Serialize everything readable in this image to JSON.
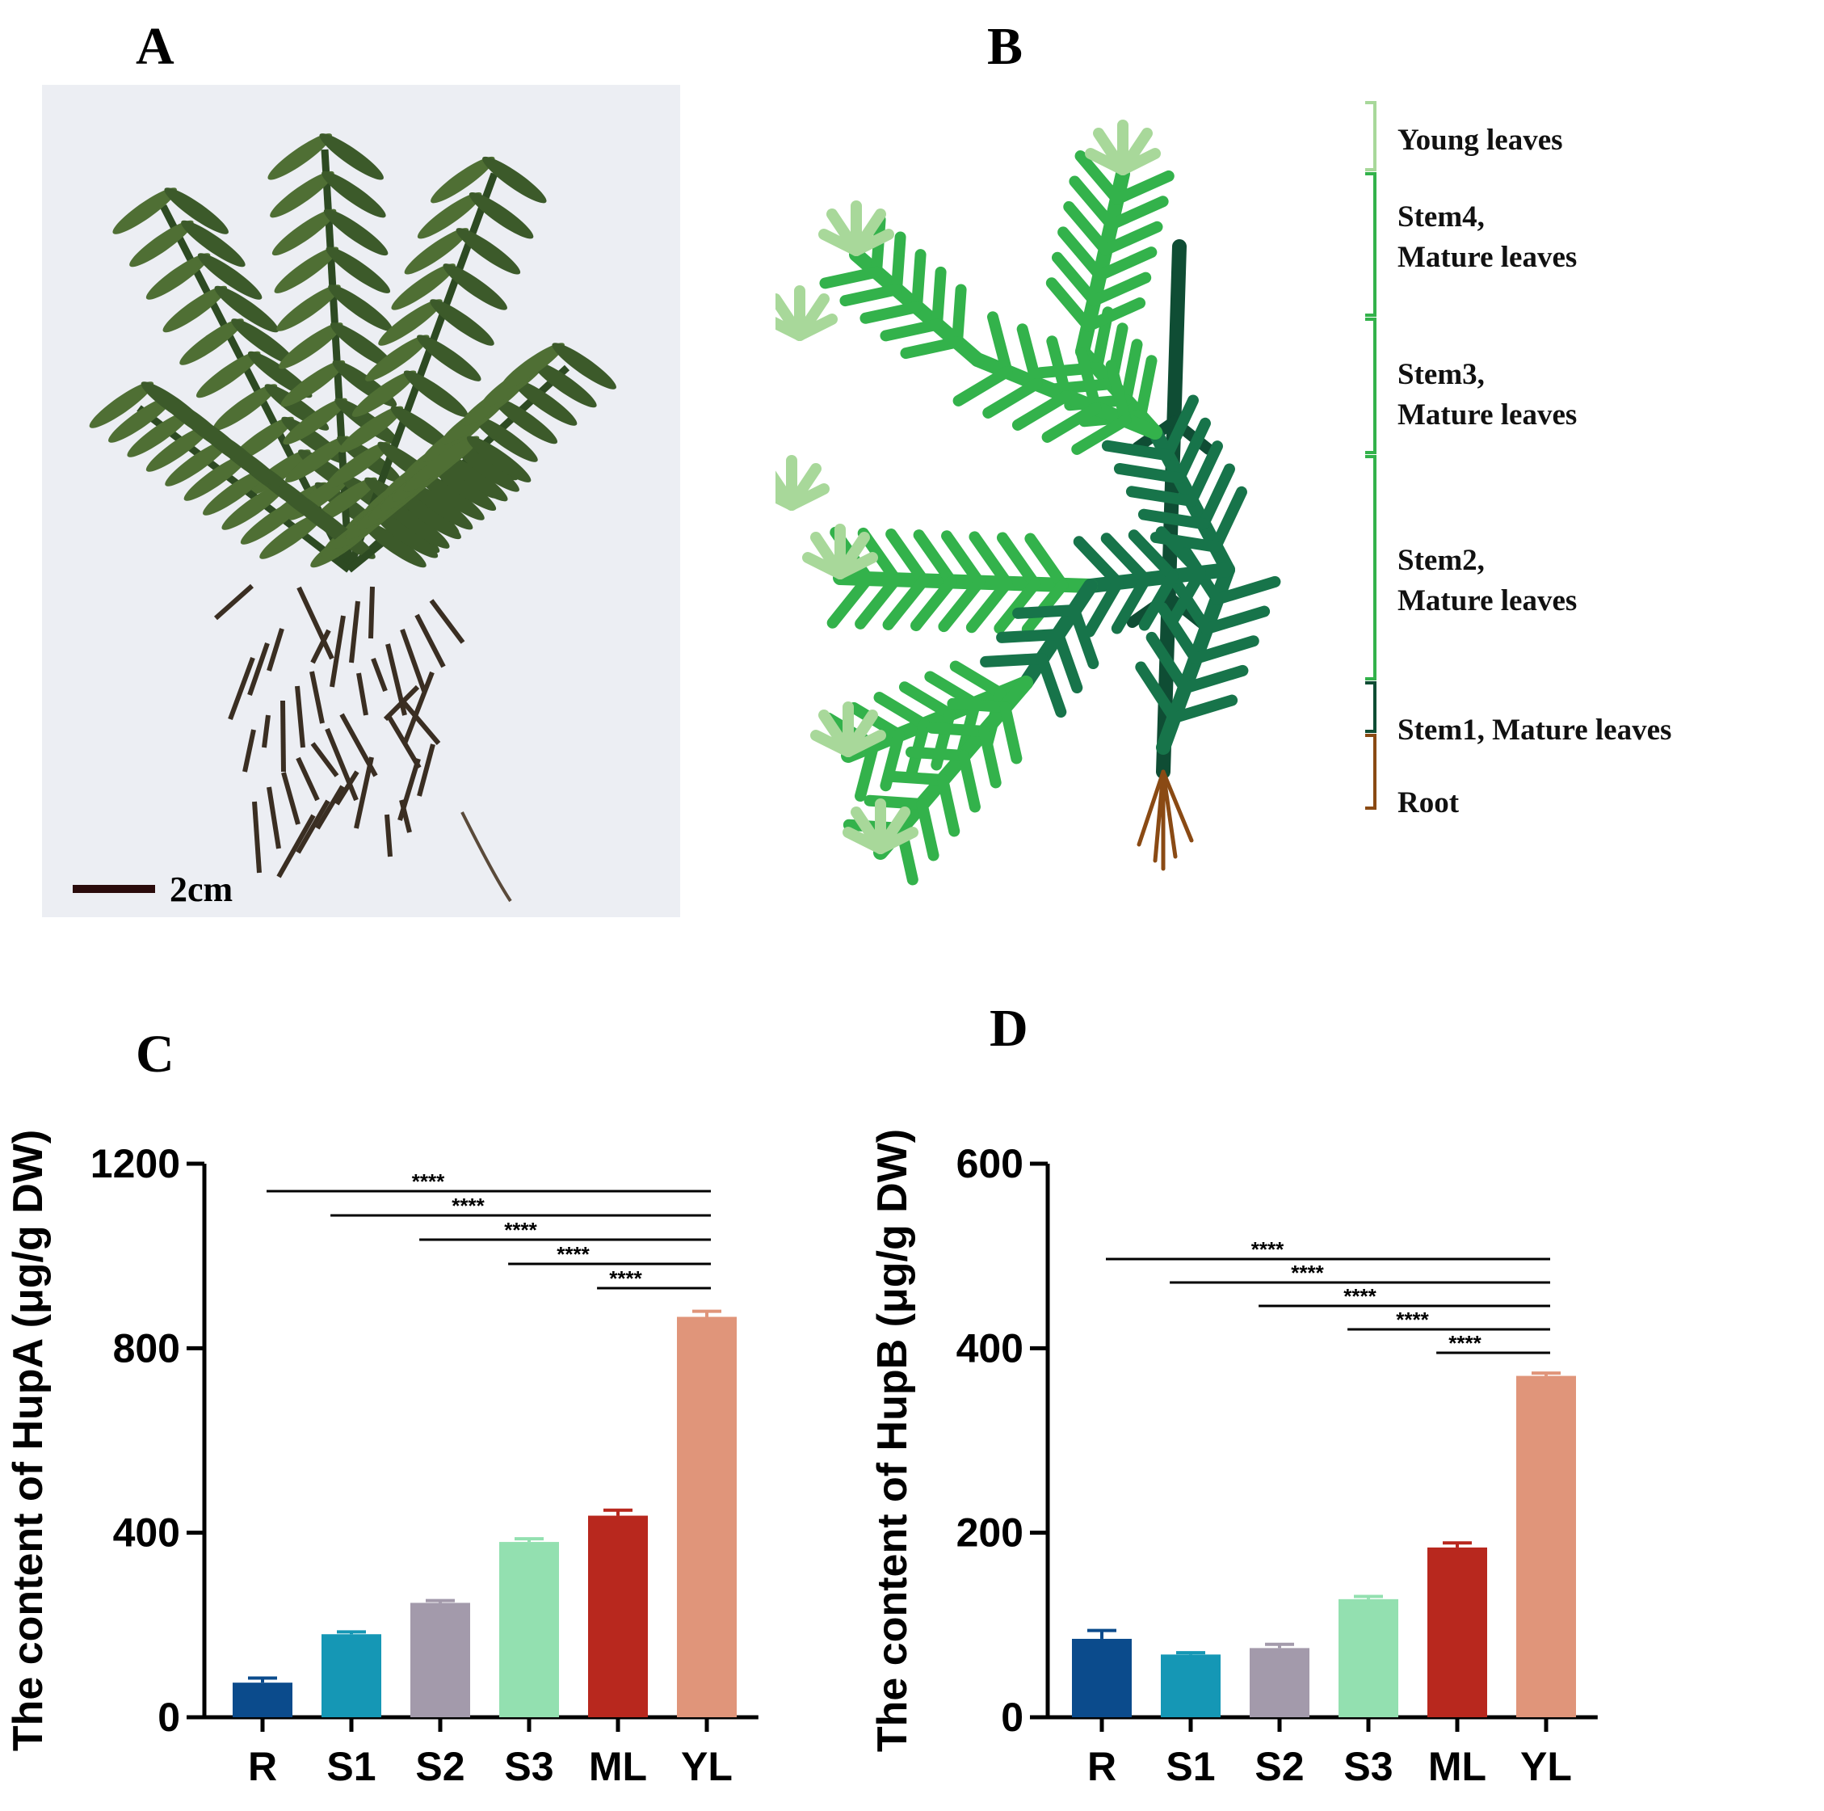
{
  "panels": {
    "a": "A",
    "b": "B",
    "c": "C",
    "d": "D"
  },
  "photo": {
    "scale_bar_label": "2cm"
  },
  "diagram": {
    "stage_labels": [
      [
        "Young leaves"
      ],
      [
        "Stem4,",
        "Mature leaves"
      ],
      [
        "Stem3,",
        "Mature leaves"
      ],
      [
        "Stem2,",
        "Mature leaves"
      ],
      [
        "Stem1, Mature leaves"
      ],
      [
        "Root"
      ]
    ]
  },
  "colors": {
    "bars": [
      "#0b4b8c",
      "#1597b5",
      "#a39aab",
      "#93e0b0",
      "#b8281e",
      "#e0957a"
    ],
    "leaf_light": "#a8d89a",
    "leaf_mid": "#33b24b",
    "leaf_dark": "#17744a",
    "leaf_darkest": "#0f4d34",
    "root": "#8a4a14"
  },
  "chart_data": [
    {
      "type": "bar",
      "ylabel": "The content of HupA (μg/g DW)",
      "categories": [
        "R",
        "S1",
        "S2",
        "S3",
        "ML",
        "YL"
      ],
      "values": [
        75,
        180,
        248,
        380,
        437,
        868
      ],
      "errors": [
        10,
        5,
        5,
        7,
        12,
        12
      ],
      "ylim": [
        0,
        1200
      ],
      "yticks": [
        0,
        400,
        800,
        1200
      ],
      "significance": [
        {
          "from": "R",
          "to": "YL",
          "label": "****"
        },
        {
          "from": "S1",
          "to": "YL",
          "label": "****"
        },
        {
          "from": "S2",
          "to": "YL",
          "label": "****"
        },
        {
          "from": "S3",
          "to": "YL",
          "label": "****"
        },
        {
          "from": "ML",
          "to": "YL",
          "label": "****"
        }
      ]
    },
    {
      "type": "bar",
      "ylabel": "The content of HupB (μg/g DW)",
      "categories": [
        "R",
        "S1",
        "S2",
        "S3",
        "ML",
        "YL"
      ],
      "values": [
        85,
        68,
        75,
        128,
        184,
        370
      ],
      "errors": [
        9,
        2,
        4,
        3,
        5,
        3
      ],
      "ylim": [
        0,
        600
      ],
      "yticks": [
        0,
        200,
        400,
        600
      ],
      "significance": [
        {
          "from": "R",
          "to": "YL",
          "label": "****"
        },
        {
          "from": "S1",
          "to": "YL",
          "label": "****"
        },
        {
          "from": "S2",
          "to": "YL",
          "label": "****"
        },
        {
          "from": "S3",
          "to": "YL",
          "label": "****"
        },
        {
          "from": "ML",
          "to": "YL",
          "label": "****"
        }
      ]
    }
  ]
}
